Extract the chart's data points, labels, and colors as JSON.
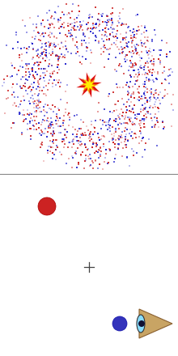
{
  "fig_width": 2.2,
  "fig_height": 4.4,
  "dpi": 100,
  "bg_color": "#ffffff",
  "n_dots": 1400,
  "dot_color_red": "#cc2222",
  "dot_color_blue": "#2222cc",
  "dot_size": 1.5,
  "star_color_red": "#cc1111",
  "star_color_orange": "#ff8800",
  "star_color_yellow": "#ffee00",
  "red_ball_color": "#cc2222",
  "blue_ball_color": "#3333bb",
  "triangle_color": "#c8a464",
  "triangle_edge_color": "#8a6030",
  "eye_color": "#88ddff",
  "pupil_color": "#111133",
  "divider_color": "#888888"
}
